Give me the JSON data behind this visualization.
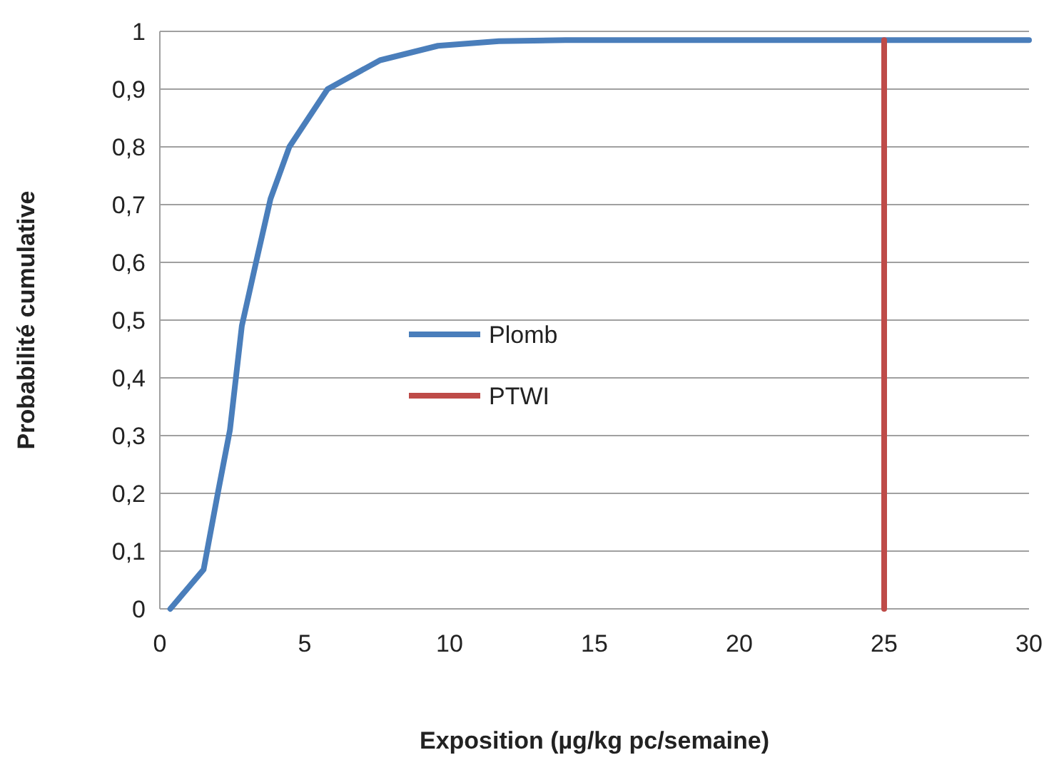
{
  "chart_data": {
    "type": "line",
    "xlabel": "Exposition (µg/kg pc/semaine)",
    "ylabel": "Probabilité cumulative",
    "xlim": [
      0,
      30
    ],
    "xticks": [
      0,
      5,
      10,
      15,
      20,
      25,
      30
    ],
    "ylim": [
      0,
      1
    ],
    "yticks": [
      0,
      {
        "value": 0.1,
        "label": "0,1"
      },
      {
        "value": 0.2,
        "label": "0,2"
      },
      {
        "value": 0.3,
        "label": "0,3"
      },
      {
        "value": 0.4,
        "label": "0,4"
      },
      {
        "value": 0.5,
        "label": "0,5"
      },
      {
        "value": 0.6,
        "label": "0,6"
      },
      {
        "value": 0.7,
        "label": "0,7"
      },
      {
        "value": 0.8,
        "label": "0,8"
      },
      {
        "value": 0.9,
        "label": "0,9"
      },
      1
    ],
    "grid": "y",
    "legend": "center",
    "marker": "none",
    "line_style": "solid",
    "series": [
      {
        "name": "Plomb",
        "color": "#4a7ebb",
        "x": [
          0.36,
          1.51,
          2.0,
          2.42,
          2.83,
          3.32,
          3.82,
          4.47,
          5.79,
          7.6,
          9.6,
          11.7,
          14,
          20,
          30
        ],
        "values": [
          0,
          0.068,
          0.2,
          0.31,
          0.49,
          0.6,
          0.71,
          0.8,
          0.9,
          0.95,
          0.975,
          0.983,
          0.985,
          0.985,
          0.985
        ]
      },
      {
        "name": "PTWI",
        "color": "#be4b48",
        "x": [
          25,
          25
        ],
        "values": [
          0,
          0.985
        ]
      }
    ]
  }
}
